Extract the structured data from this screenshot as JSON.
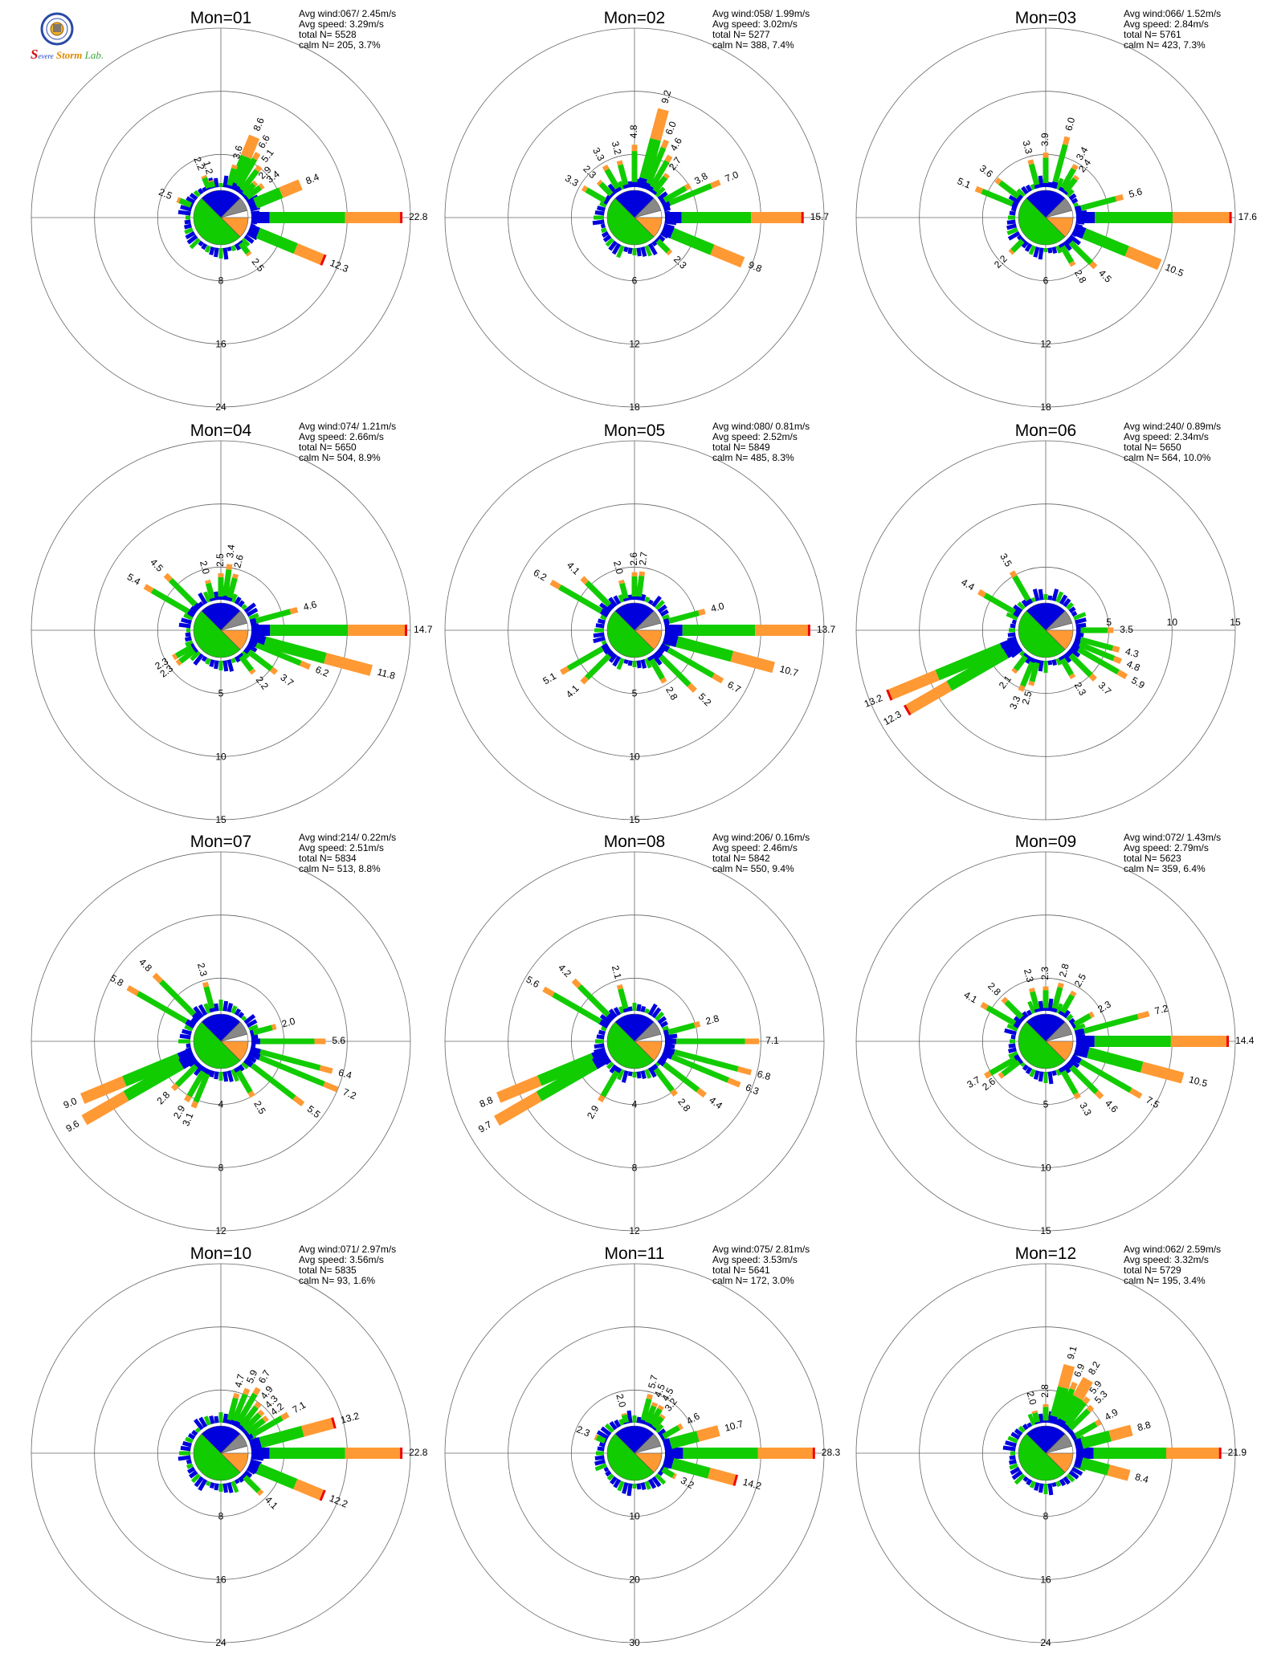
{
  "logo": {
    "text_a": "S",
    "text_b": "evere",
    "text_c": "Storm",
    "text_d": "Lab."
  },
  "colors": {
    "bin1": "#0000dd",
    "bin2": "#11cc00",
    "bin3": "#ff9933",
    "bin4": "#ee0000",
    "sector_gray": "#888888",
    "grid": "#666666"
  },
  "chart_data": [
    {
      "type": "wind-rose",
      "title": "Mon=01",
      "avg_wind": "067/ 2.45m/s",
      "avg_speed": "3.29m/s",
      "total_n": "5528",
      "calm_n": "205,",
      "calm_pct": "3.7%",
      "rings": [
        "8",
        "16",
        "24"
      ],
      "rmax": 24,
      "petals": [
        {
          "dir": 90,
          "value": 22.8,
          "label": "22.8"
        },
        {
          "dir": 112.5,
          "value": 12.3,
          "label": "12.3"
        },
        {
          "dir": 67.5,
          "value": 8.4,
          "label": "8.4"
        },
        {
          "dir": 22.5,
          "value": 8.6,
          "label": "8.6"
        },
        {
          "dir": 30,
          "value": 6.6,
          "label": "6.6"
        },
        {
          "dir": 37.5,
          "value": 5.1,
          "label": "5.1"
        },
        {
          "dir": 15,
          "value": 3.6,
          "label": "3.6"
        },
        {
          "dir": 45,
          "value": 2.9,
          "label": "2.9"
        },
        {
          "dir": 52.5,
          "value": 3.4,
          "label": "3.4"
        },
        {
          "dir": 142.5,
          "value": 2.5,
          "label": "2.5"
        },
        {
          "dir": 292.5,
          "value": 2.5,
          "label": "2.5"
        },
        {
          "dir": 337.5,
          "value": 2.2,
          "label": "2.2"
        },
        {
          "dir": 345,
          "value": 1.2,
          "label": "1.2"
        }
      ]
    },
    {
      "type": "wind-rose",
      "title": "Mon=02",
      "avg_wind": "058/ 1.99m/s",
      "avg_speed": "3.02m/s",
      "total_n": "5277",
      "calm_n": "388,",
      "calm_pct": "7.4%",
      "rings": [
        "6",
        "12",
        "18"
      ],
      "rmax": 18,
      "petals": [
        {
          "dir": 90,
          "value": 15.7,
          "label": "15.7"
        },
        {
          "dir": 112.5,
          "value": 9.8,
          "label": "9.8"
        },
        {
          "dir": 67.5,
          "value": 7.0,
          "label": "7.0"
        },
        {
          "dir": 15,
          "value": 9.2,
          "label": "9.2"
        },
        {
          "dir": 22.5,
          "value": 6.0,
          "label": "6.0"
        },
        {
          "dir": 30,
          "value": 4.6,
          "label": "4.6"
        },
        {
          "dir": 0,
          "value": 4.8,
          "label": "4.8"
        },
        {
          "dir": 37.5,
          "value": 2.7,
          "label": "2.7"
        },
        {
          "dir": 60,
          "value": 3.8,
          "label": "3.8"
        },
        {
          "dir": 135,
          "value": 2.3,
          "label": "2.3"
        },
        {
          "dir": 330,
          "value": 3.3,
          "label": "3.3"
        },
        {
          "dir": 345,
          "value": 3.2,
          "label": "3.2"
        },
        {
          "dir": 300,
          "value": 3.3,
          "label": "3.3"
        },
        {
          "dir": 315,
          "value": 2.3,
          "label": "2.3"
        }
      ]
    },
    {
      "type": "wind-rose",
      "title": "Mon=03",
      "avg_wind": "066/ 1.52m/s",
      "avg_speed": "2.84m/s",
      "total_n": "5761",
      "calm_n": "423,",
      "calm_pct": "7.3%",
      "rings": [
        "6",
        "12",
        "18"
      ],
      "rmax": 18,
      "petals": [
        {
          "dir": 90,
          "value": 17.6,
          "label": "17.6"
        },
        {
          "dir": 112.5,
          "value": 10.5,
          "label": "10.5"
        },
        {
          "dir": 75,
          "value": 5.6,
          "label": "5.6"
        },
        {
          "dir": 15,
          "value": 6.0,
          "label": "6.0"
        },
        {
          "dir": 30,
          "value": 3.4,
          "label": "3.4"
        },
        {
          "dir": 37.5,
          "value": 2.4,
          "label": "2.4"
        },
        {
          "dir": 0,
          "value": 3.9,
          "label": "3.9"
        },
        {
          "dir": 292.5,
          "value": 5.1,
          "label": "5.1"
        },
        {
          "dir": 307.5,
          "value": 3.6,
          "label": "3.6"
        },
        {
          "dir": 345,
          "value": 3.3,
          "label": "3.3"
        },
        {
          "dir": 135,
          "value": 4.5,
          "label": "4.5"
        },
        {
          "dir": 150,
          "value": 2.8,
          "label": "2.8"
        },
        {
          "dir": 225,
          "value": 2.2,
          "label": "2.2"
        }
      ]
    },
    {
      "type": "wind-rose",
      "title": "Mon=04",
      "avg_wind": "074/ 1.21m/s",
      "avg_speed": "2.66m/s",
      "total_n": "5650",
      "calm_n": "504,",
      "calm_pct": "8.9%",
      "rings": [
        "5",
        "10",
        "15"
      ],
      "rmax": 15,
      "petals": [
        {
          "dir": 90,
          "value": 14.7,
          "label": "14.7"
        },
        {
          "dir": 105,
          "value": 11.8,
          "label": "11.8"
        },
        {
          "dir": 112.5,
          "value": 6.2,
          "label": "6.2"
        },
        {
          "dir": 75,
          "value": 4.6,
          "label": "4.6"
        },
        {
          "dir": 300,
          "value": 5.4,
          "label": "5.4"
        },
        {
          "dir": 315,
          "value": 4.5,
          "label": "4.5"
        },
        {
          "dir": 345,
          "value": 2.0,
          "label": "2.0"
        },
        {
          "dir": 7.5,
          "value": 3.4,
          "label": "3.4"
        },
        {
          "dir": 0,
          "value": 2.5,
          "label": "2.5"
        },
        {
          "dir": 15,
          "value": 2.6,
          "label": "2.6"
        },
        {
          "dir": 127.5,
          "value": 3.7,
          "label": "3.7"
        },
        {
          "dir": 142.5,
          "value": 2.2,
          "label": "2.2"
        },
        {
          "dir": 240,
          "value": 2.3,
          "label": "2.3"
        },
        {
          "dir": 232.5,
          "value": 2.3,
          "label": "2.3"
        }
      ]
    },
    {
      "type": "wind-rose",
      "title": "Mon=05",
      "avg_wind": "080/ 0.81m/s",
      "avg_speed": "2.52m/s",
      "total_n": "5849",
      "calm_n": "485,",
      "calm_pct": "8.3%",
      "rings": [
        "5",
        "10",
        "15"
      ],
      "rmax": 15,
      "petals": [
        {
          "dir": 90,
          "value": 13.7,
          "label": "13.7"
        },
        {
          "dir": 105,
          "value": 10.7,
          "label": "10.7"
        },
        {
          "dir": 120,
          "value": 6.7,
          "label": "6.7"
        },
        {
          "dir": 135,
          "value": 5.2,
          "label": "5.2"
        },
        {
          "dir": 150,
          "value": 2.8,
          "label": "2.8"
        },
        {
          "dir": 75,
          "value": 4.0,
          "label": "4.0"
        },
        {
          "dir": 300,
          "value": 6.2,
          "label": "6.2"
        },
        {
          "dir": 315,
          "value": 4.1,
          "label": "4.1"
        },
        {
          "dir": 345,
          "value": 2.0,
          "label": "2.0"
        },
        {
          "dir": 7.5,
          "value": 2.7,
          "label": "2.7"
        },
        {
          "dir": 0,
          "value": 2.6,
          "label": "2.6"
        },
        {
          "dir": 240,
          "value": 5.1,
          "label": "5.1"
        },
        {
          "dir": 225,
          "value": 4.1,
          "label": "4.1"
        }
      ]
    },
    {
      "type": "wind-rose",
      "title": "Mon=06",
      "avg_wind": "240/ 0.89m/s",
      "avg_speed": "2.34m/s",
      "total_n": "5650",
      "calm_n": "564,",
      "calm_pct": "10.0%",
      "rings": [
        "5",
        "10",
        "15"
      ],
      "rmax": 15,
      "petals": [
        {
          "dir": 247.5,
          "value": 13.2,
          "label": "13.2"
        },
        {
          "dir": 240,
          "value": 12.3,
          "label": "12.3"
        },
        {
          "dir": 217.5,
          "value": 2.1,
          "label": "2.1"
        },
        {
          "dir": 202.5,
          "value": 3.3,
          "label": "3.3"
        },
        {
          "dir": 195,
          "value": 2.5,
          "label": "2.5"
        },
        {
          "dir": 300,
          "value": 4.4,
          "label": "4.4"
        },
        {
          "dir": 330,
          "value": 3.5,
          "label": "3.5"
        },
        {
          "dir": 90,
          "value": 3.5,
          "label": "3.5"
        },
        {
          "dir": 105,
          "value": 4.3,
          "label": "4.3"
        },
        {
          "dir": 112.5,
          "value": 4.8,
          "label": "4.8"
        },
        {
          "dir": 120,
          "value": 5.9,
          "label": "5.9"
        },
        {
          "dir": 135,
          "value": 3.7,
          "label": "3.7"
        },
        {
          "dir": 150,
          "value": 2.3,
          "label": "2.3"
        }
      ]
    },
    {
      "type": "wind-rose",
      "title": "Mon=07",
      "avg_wind": "214/ 0.22m/s",
      "avg_speed": "2.51m/s",
      "total_n": "5834",
      "calm_n": "513,",
      "calm_pct": "8.8%",
      "rings": [
        "4",
        "8",
        "12"
      ],
      "rmax": 12,
      "petals": [
        {
          "dir": 247.5,
          "value": 9.0,
          "label": "9.0"
        },
        {
          "dir": 240,
          "value": 9.6,
          "label": "9.6"
        },
        {
          "dir": 300,
          "value": 5.8,
          "label": "5.8"
        },
        {
          "dir": 315,
          "value": 4.8,
          "label": "4.8"
        },
        {
          "dir": 345,
          "value": 2.3,
          "label": "2.3"
        },
        {
          "dir": 75,
          "value": 2.0,
          "label": "2.0"
        },
        {
          "dir": 90,
          "value": 5.6,
          "label": "5.6"
        },
        {
          "dir": 105,
          "value": 6.4,
          "label": "6.4"
        },
        {
          "dir": 112.5,
          "value": 7.2,
          "label": "7.2"
        },
        {
          "dir": 127.5,
          "value": 5.5,
          "label": "5.5"
        },
        {
          "dir": 150,
          "value": 2.5,
          "label": "2.5"
        },
        {
          "dir": 202.5,
          "value": 3.1,
          "label": "3.1"
        },
        {
          "dir": 210,
          "value": 2.9,
          "label": "2.9"
        },
        {
          "dir": 225,
          "value": 2.8,
          "label": "2.8"
        }
      ]
    },
    {
      "type": "wind-rose",
      "title": "Mon=08",
      "avg_wind": "206/ 0.16m/s",
      "avg_speed": "2.46m/s",
      "total_n": "5842",
      "calm_n": "550,",
      "calm_pct": "9.4%",
      "rings": [
        "4",
        "8",
        "12"
      ],
      "rmax": 12,
      "petals": [
        {
          "dir": 247.5,
          "value": 8.8,
          "label": "8.8"
        },
        {
          "dir": 240,
          "value": 9.7,
          "label": "9.7"
        },
        {
          "dir": 210,
          "value": 2.9,
          "label": "2.9"
        },
        {
          "dir": 300,
          "value": 5.6,
          "label": "5.6"
        },
        {
          "dir": 315,
          "value": 4.2,
          "label": "4.2"
        },
        {
          "dir": 345,
          "value": 2.1,
          "label": "2.1"
        },
        {
          "dir": 75,
          "value": 2.8,
          "label": "2.8"
        },
        {
          "dir": 90,
          "value": 7.1,
          "label": "7.1"
        },
        {
          "dir": 105,
          "value": 6.8,
          "label": "6.8"
        },
        {
          "dir": 112.5,
          "value": 6.3,
          "label": "6.3"
        },
        {
          "dir": 127.5,
          "value": 4.4,
          "label": "4.4"
        },
        {
          "dir": 142.5,
          "value": 2.8,
          "label": "2.8"
        }
      ]
    },
    {
      "type": "wind-rose",
      "title": "Mon=09",
      "avg_wind": "072/ 1.43m/s",
      "avg_speed": "2.79m/s",
      "total_n": "5623",
      "calm_n": "359,",
      "calm_pct": "6.4%",
      "rings": [
        "5",
        "10",
        "15"
      ],
      "rmax": 15,
      "petals": [
        {
          "dir": 90,
          "value": 14.4,
          "label": "14.4"
        },
        {
          "dir": 105,
          "value": 10.5,
          "label": "10.5"
        },
        {
          "dir": 120,
          "value": 7.5,
          "label": "7.5"
        },
        {
          "dir": 135,
          "value": 4.6,
          "label": "4.6"
        },
        {
          "dir": 75,
          "value": 7.2,
          "label": "7.2"
        },
        {
          "dir": 60,
          "value": 2.3,
          "label": "2.3"
        },
        {
          "dir": 300,
          "value": 4.1,
          "label": "4.1"
        },
        {
          "dir": 315,
          "value": 2.8,
          "label": "2.8"
        },
        {
          "dir": 345,
          "value": 2.3,
          "label": "2.3"
        },
        {
          "dir": 0,
          "value": 2.3,
          "label": "2.3"
        },
        {
          "dir": 15,
          "value": 2.8,
          "label": "2.8"
        },
        {
          "dir": 30,
          "value": 2.5,
          "label": "2.5"
        },
        {
          "dir": 240,
          "value": 3.7,
          "label": "3.7"
        },
        {
          "dir": 232.5,
          "value": 2.6,
          "label": "2.6"
        },
        {
          "dir": 150,
          "value": 3.3,
          "label": "3.3"
        }
      ]
    },
    {
      "type": "wind-rose",
      "title": "Mon=10",
      "avg_wind": "071/ 2.97m/s",
      "avg_speed": "3.56m/s",
      "total_n": "5835",
      "calm_n": "93,",
      "calm_pct": "1.6%",
      "rings": [
        "8",
        "16",
        "24"
      ],
      "rmax": 24,
      "petals": [
        {
          "dir": 90,
          "value": 22.8,
          "label": "22.8"
        },
        {
          "dir": 112.5,
          "value": 12.2,
          "label": "12.2"
        },
        {
          "dir": 75,
          "value": 13.2,
          "label": "13.2"
        },
        {
          "dir": 60,
          "value": 7.1,
          "label": "7.1"
        },
        {
          "dir": 15,
          "value": 4.7,
          "label": "4.7"
        },
        {
          "dir": 22.5,
          "value": 5.9,
          "label": "5.9"
        },
        {
          "dir": 30,
          "value": 6.7,
          "label": "6.7"
        },
        {
          "dir": 37.5,
          "value": 4.9,
          "label": "4.9"
        },
        {
          "dir": 45,
          "value": 4.3,
          "label": "4.3"
        },
        {
          "dir": 52.5,
          "value": 4.2,
          "label": "4.2"
        },
        {
          "dir": 135,
          "value": 4.1,
          "label": "4.1"
        }
      ]
    },
    {
      "type": "wind-rose",
      "title": "Mon=11",
      "avg_wind": "075/ 2.81m/s",
      "avg_speed": "3.53m/s",
      "total_n": "5641",
      "calm_n": "172,",
      "calm_pct": "3.0%",
      "rings": [
        "10",
        "20",
        "30"
      ],
      "rmax": 30,
      "petals": [
        {
          "dir": 90,
          "value": 28.3,
          "label": "28.3"
        },
        {
          "dir": 105,
          "value": 14.2,
          "label": "14.2"
        },
        {
          "dir": 75,
          "value": 10.7,
          "label": "10.7"
        },
        {
          "dir": 60,
          "value": 4.6,
          "label": "4.6"
        },
        {
          "dir": 15,
          "value": 5.7,
          "label": "5.7"
        },
        {
          "dir": 22.5,
          "value": 4.5,
          "label": "4.5"
        },
        {
          "dir": 30,
          "value": 4.5,
          "label": "4.5"
        },
        {
          "dir": 37.5,
          "value": 3.2,
          "label": "3.2"
        },
        {
          "dir": 345,
          "value": 2.0,
          "label": "2.0"
        },
        {
          "dir": 292.5,
          "value": 2.3,
          "label": "2.3"
        },
        {
          "dir": 120,
          "value": 3.2,
          "label": "3.2"
        }
      ]
    },
    {
      "type": "wind-rose",
      "title": "Mon=12",
      "avg_wind": "062/ 2.59m/s",
      "avg_speed": "3.32m/s",
      "total_n": "5729",
      "calm_n": "195,",
      "calm_pct": "3.4%",
      "rings": [
        "8",
        "16",
        "24"
      ],
      "rmax": 24,
      "petals": [
        {
          "dir": 90,
          "value": 21.9,
          "label": "21.9"
        },
        {
          "dir": 105,
          "value": 8.4,
          "label": "8.4"
        },
        {
          "dir": 75,
          "value": 8.8,
          "label": "8.8"
        },
        {
          "dir": 15,
          "value": 9.1,
          "label": "9.1"
        },
        {
          "dir": 22.5,
          "value": 6.9,
          "label": "6.9"
        },
        {
          "dir": 30,
          "value": 8.2,
          "label": "8.2"
        },
        {
          "dir": 37.5,
          "value": 5.9,
          "label": "5.9"
        },
        {
          "dir": 45,
          "value": 5.3,
          "label": "5.3"
        },
        {
          "dir": 60,
          "value": 4.9,
          "label": "4.9"
        },
        {
          "dir": 345,
          "value": 2.0,
          "label": "2.0"
        },
        {
          "dir": 0,
          "value": 2.8,
          "label": "2.8"
        }
      ]
    }
  ]
}
